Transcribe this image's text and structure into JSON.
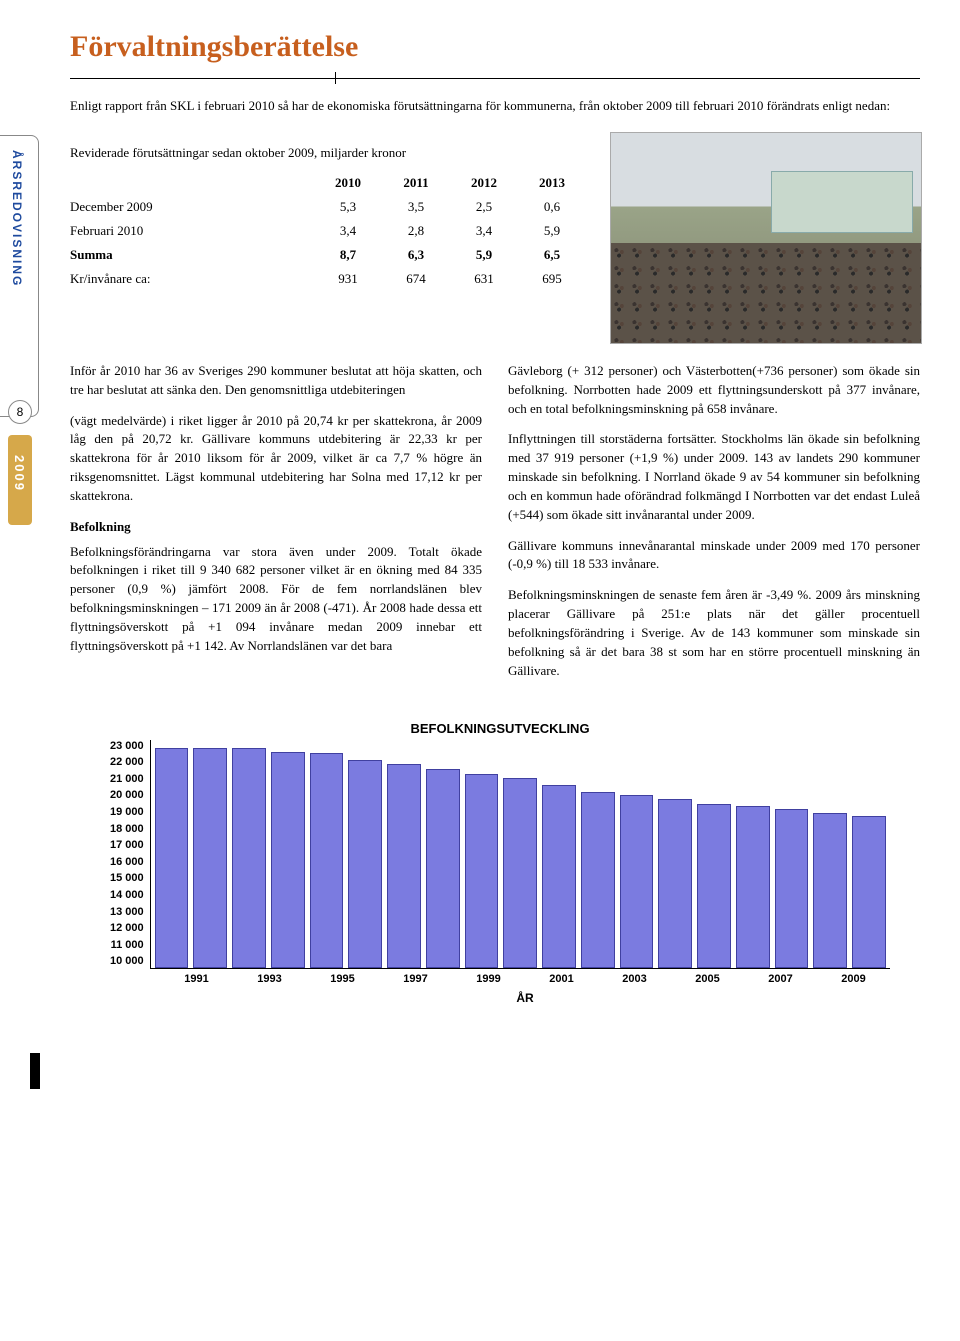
{
  "title": "Förvaltningsberättelse",
  "intro": "Enligt rapport från SKL i februari 2010 så har de ekonomiska förutsättningarna för kommunerna, från oktober 2009 till februari 2010 förändrats enligt nedan:",
  "sidebar_label": "ÅRSREDOVISNING",
  "page_number": "8",
  "year_label": "2009",
  "table": {
    "heading": "Reviderade förutsättningar sedan oktober 2009, miljarder kronor",
    "cols": [
      "2010",
      "2011",
      "2012",
      "2013"
    ],
    "rows": [
      {
        "label": "December 2009",
        "vals": [
          "5,3",
          "3,5",
          "2,5",
          "0,6"
        ],
        "bold": false
      },
      {
        "label": "Februari 2010",
        "vals": [
          "3,4",
          "2,8",
          "3,4",
          "5,9"
        ],
        "bold": false
      },
      {
        "label": "Summa",
        "vals": [
          "8,7",
          "6,3",
          "5,9",
          "6,5"
        ],
        "bold": true
      },
      {
        "label": "Kr/invånare ca:",
        "vals": [
          "931",
          "674",
          "631",
          "695"
        ],
        "bold": false
      }
    ]
  },
  "left_col": {
    "p1": "Inför år 2010 har 36 av Sveriges 290 kommuner beslutat att höja skatten, och tre har beslutat att sänka den. Den genomsnittliga utdebiteringen",
    "p2": "(vägt medelvärde) i riket ligger år 2010 på 20,74 kr per skattekrona, år 2009 låg den på 20,72 kr. Gällivare kommuns utdebitering är 22,33 kr per skattekrona för år 2010 liksom för år 2009, vilket är ca 7,7 % högre än riksgenomsnittet. Lägst kommunal utdebitering har Solna med 17,12 kr per skattekrona.",
    "subhead": "Befolkning",
    "p3": "Befolkningsförändringarna var stora även under 2009. Totalt ökade befolkningen i riket till 9 340 682 personer vilket är en ökning med 84 335 personer (0,9 %) jämfört 2008. För de fem norrlandslänen blev befolkningsminskningen – 171 2009 än år 2008 (-471). År 2008 hade dessa ett flyttningsöverskott på +1 094 invånare medan 2009 innebar ett flyttningsöverskott på +1 142. Av Norrlandslänen var det bara"
  },
  "right_col": {
    "p1": "Gävleborg (+ 312 personer) och Västerbotten(+736 personer) som ökade sin befolkning. Norrbotten hade 2009 ett flyttningsunderskott på 377 invånare, och en total befolkningsminskning på 658 invånare.",
    "p2": "Inflyttningen till storstäderna fortsätter. Stockholms län ökade sin befolkning med 37 919 personer (+1,9 %) under 2009. 143 av landets 290 kommuner minskade sin befolkning. I Norrland ökade 9 av 54 kommuner sin befolkning och en kommun hade oförändrad folkmängd I Norrbotten var det endast Luleå (+544) som ökade sitt invånarantal under 2009.",
    "p3": "Gällivare kommuns innevånarantal minskade under 2009 med 170 personer (-0,9 %) till 18 533 invånare.",
    "p4": "Befolkningsminskningen de senaste fem åren är -3,49 %. 2009 års minskning placerar Gällivare på 251:e plats när det gäller procentuell befolkningsförändring i Sverige. Av de 143 kommuner som minskade sin befolkning så är det bara 38 st som har en större procentuell minskning än Gällivare."
  },
  "chart": {
    "title": "BEFOLKNINGSUTVECKLING",
    "type": "bar",
    "bar_color": "#7b7be0",
    "bar_border": "#4040a0",
    "background_color": "#ffffff",
    "axis_color": "#000000",
    "tick_fontsize": 11,
    "title_fontsize": 13,
    "ylim": [
      10000,
      23000
    ],
    "ytick_step": 1000,
    "yticks": [
      "23 000",
      "22 000",
      "21 000",
      "20 000",
      "19 000",
      "18 000",
      "17 000",
      "16 000",
      "15 000",
      "14 000",
      "13 000",
      "12 000",
      "11 000",
      "10 000"
    ],
    "years": [
      "1991",
      "1992",
      "1993",
      "1994",
      "1995",
      "1996",
      "1997",
      "1998",
      "1999",
      "2000",
      "2001",
      "2002",
      "2003",
      "2004",
      "2005",
      "2006",
      "2007",
      "2008",
      "2009"
    ],
    "values": [
      22400,
      22400,
      22400,
      22200,
      22100,
      21700,
      21500,
      21200,
      20900,
      20700,
      20300,
      19900,
      19700,
      19500,
      19200,
      19100,
      18900,
      18700,
      18533
    ],
    "xticks": [
      "1991",
      "1993",
      "1995",
      "1997",
      "1999",
      "2001",
      "2003",
      "2005",
      "2007",
      "2009"
    ],
    "xlabel": "ÅR"
  }
}
